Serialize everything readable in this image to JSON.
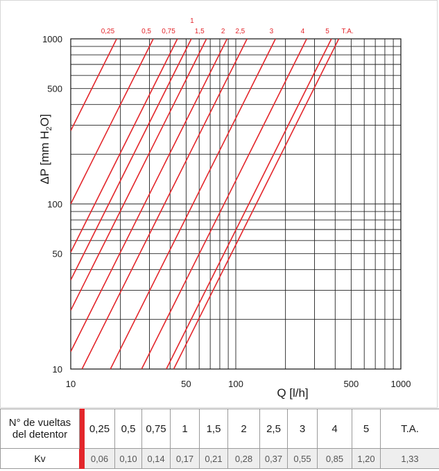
{
  "chart_data": {
    "type": "line",
    "scale": "log-log",
    "xlabel": "Q [l/h]",
    "ylabel": "ΔP [mm H2O]",
    "xlim": [
      10,
      1000
    ],
    "ylim": [
      10,
      1000
    ],
    "x_ticks": [
      10,
      50,
      100,
      500,
      1000
    ],
    "y_ticks": [
      10,
      50,
      100,
      500,
      1000
    ],
    "grid": true,
    "line_color": "#e3262b",
    "series": [
      {
        "name": "0,25",
        "kv": 0.06
      },
      {
        "name": "0,5",
        "kv": 0.1
      },
      {
        "name": "0,75",
        "kv": 0.14
      },
      {
        "name": "1",
        "kv": 0.17
      },
      {
        "name": "1,5",
        "kv": 0.21
      },
      {
        "name": "2",
        "kv": 0.28
      },
      {
        "name": "2,5",
        "kv": 0.37
      },
      {
        "name": "3",
        "kv": 0.55
      },
      {
        "name": "4",
        "kv": 0.85
      },
      {
        "name": "5",
        "kv": 1.2
      },
      {
        "name": "T.A.",
        "kv": 1.33
      }
    ]
  },
  "table": {
    "row1_header": [
      "N° de vueltas",
      "del detentor"
    ],
    "row2_header": "Kv",
    "turns": [
      "0,25",
      "0,5",
      "0,75",
      "1",
      "1,5",
      "2",
      "2,5",
      "3",
      "4",
      "5",
      "T.A."
    ],
    "kv": [
      "0,06",
      "0,10",
      "0,14",
      "0,17",
      "0,21",
      "0,28",
      "0,37",
      "0,55",
      "0,85",
      "1,20",
      "1,33"
    ]
  }
}
